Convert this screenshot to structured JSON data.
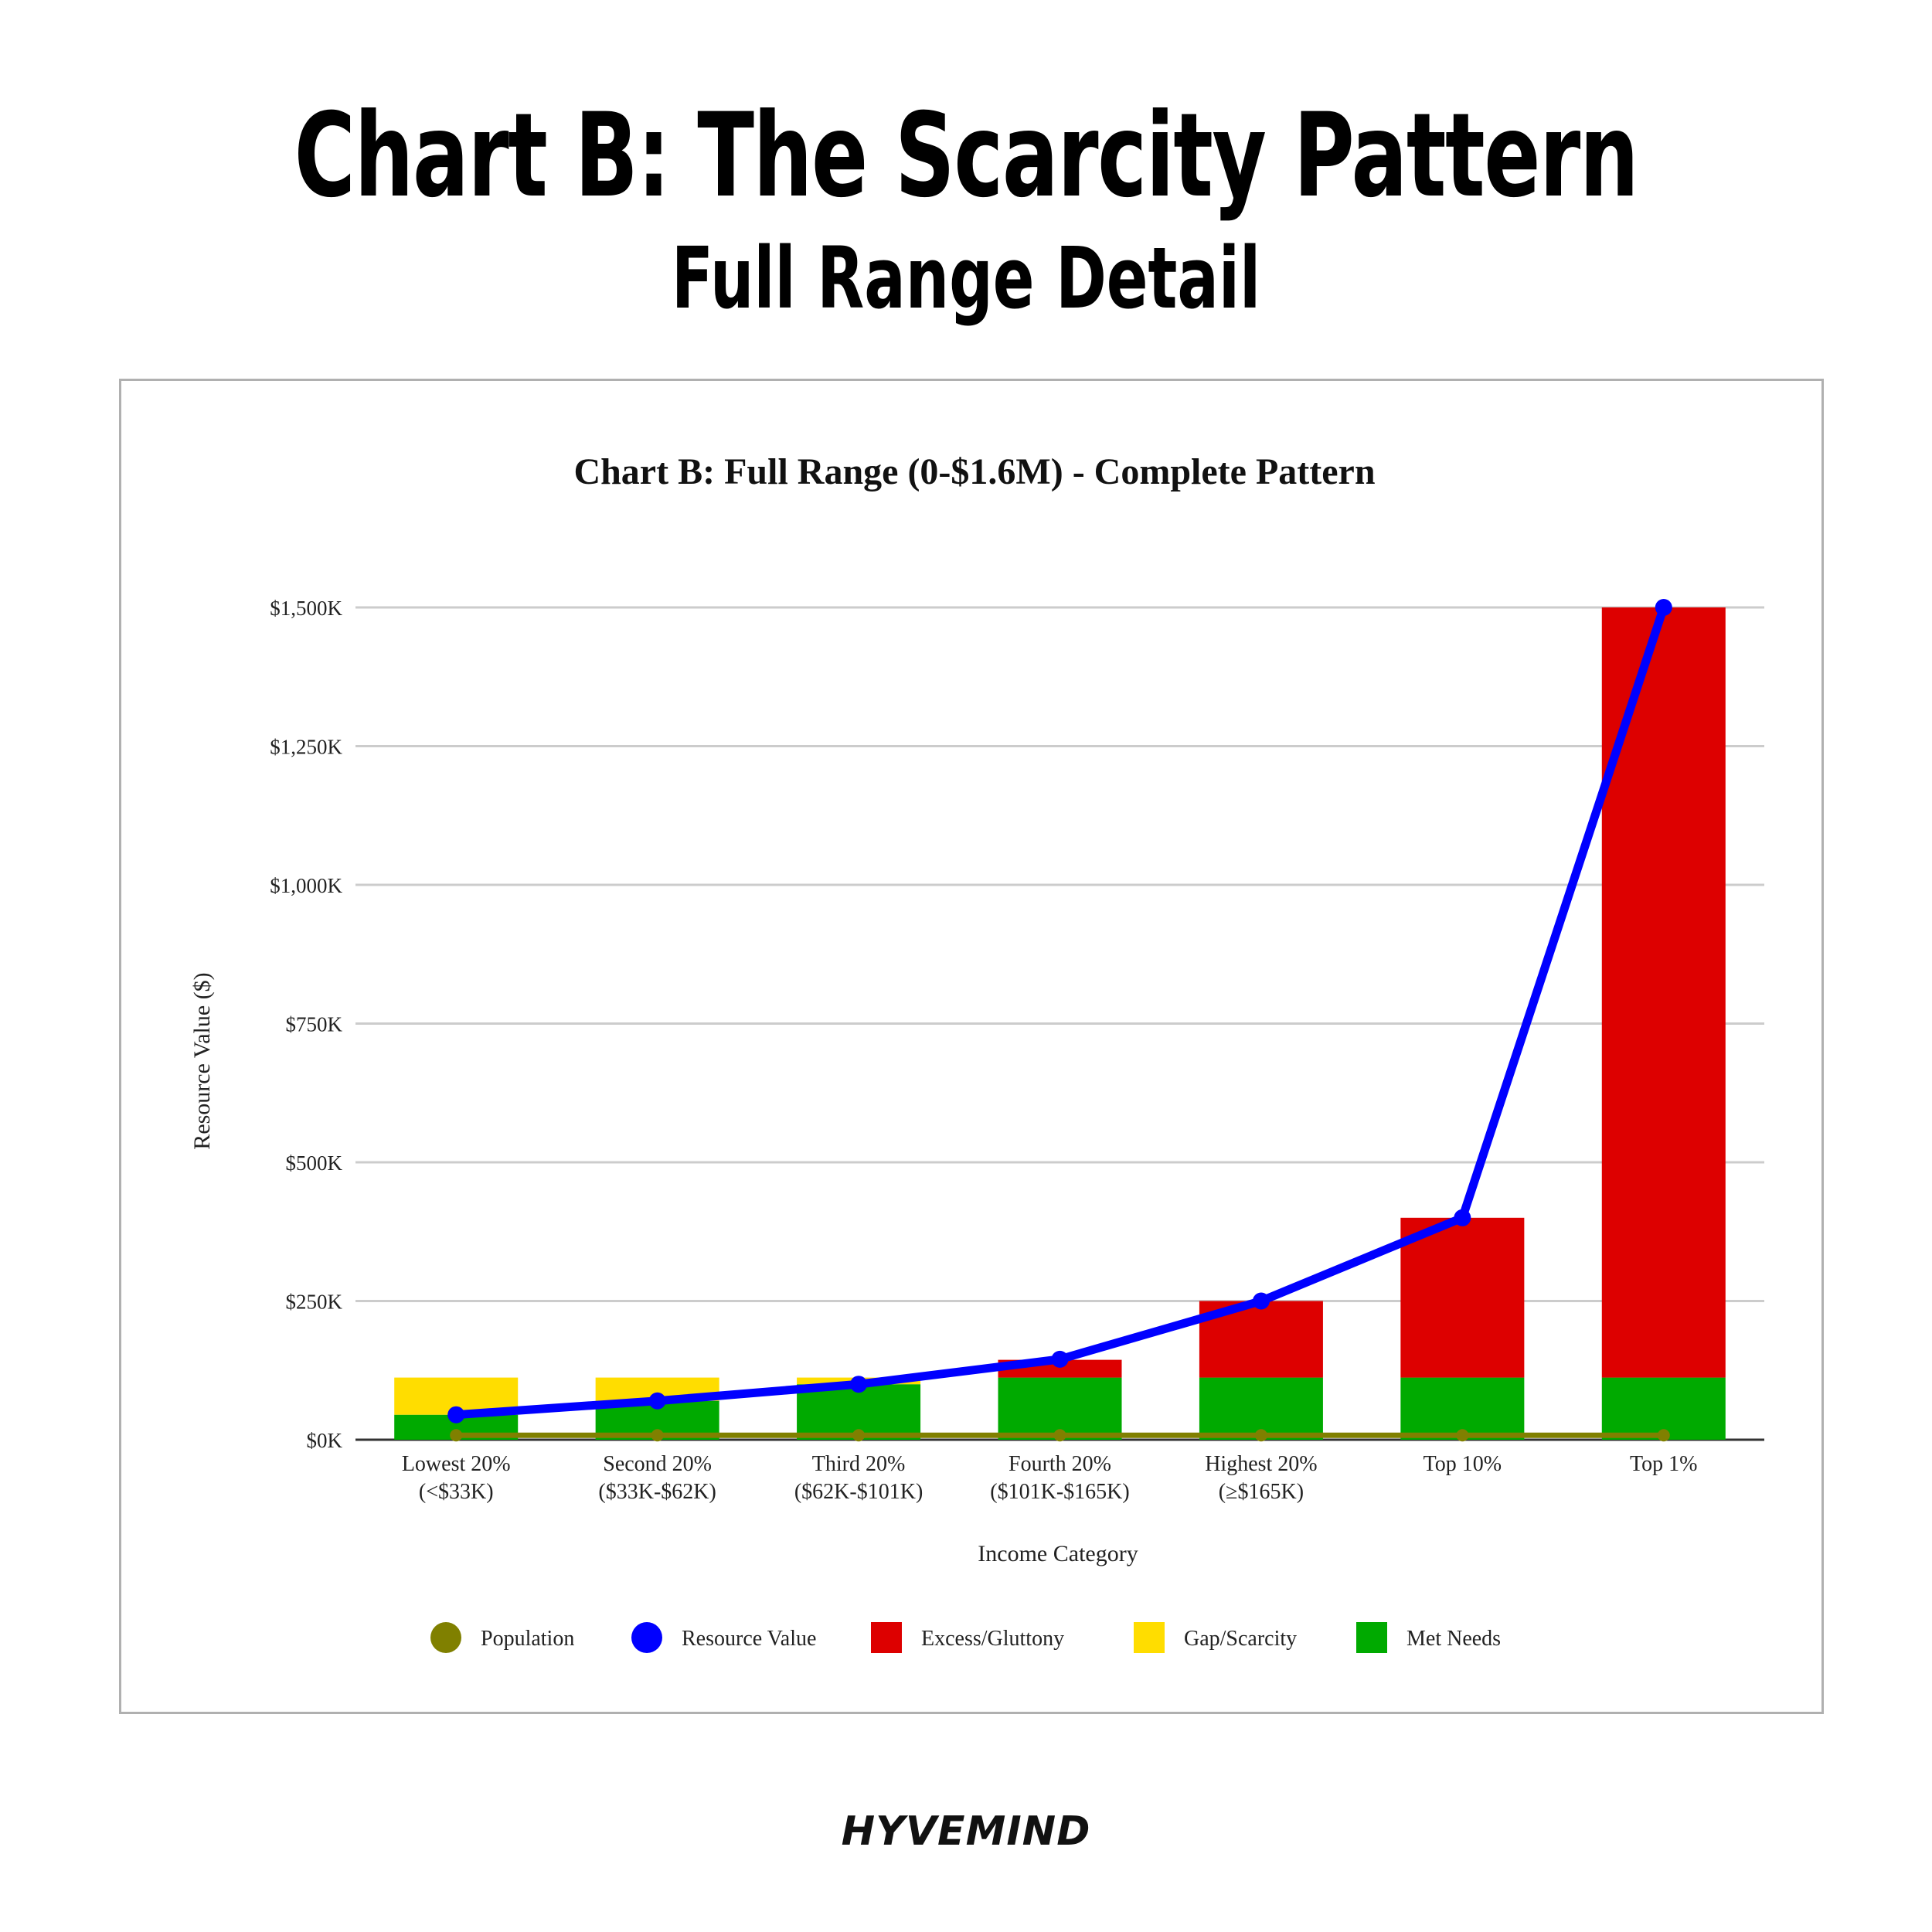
{
  "header": {
    "title": "Chart B: The Scarcity Pattern",
    "subtitle": "Full Range Detail"
  },
  "brand": "HYVEMIND",
  "colors": {
    "population": "#808000",
    "resource_value": "#0000ff",
    "excess": "#dd0000",
    "gap": "#ffdd00",
    "met_needs": "#00aa00"
  },
  "chart_data": {
    "type": "bar",
    "stacked": true,
    "title": "Chart B: Full Range (0-$1.6M) - Complete Pattern",
    "xlabel": "Income Category",
    "ylabel": "Resource Value ($)",
    "ylim": [
      0,
      1500
    ],
    "unit": "thousands of dollars",
    "yticks": [
      "$0K",
      "$250K",
      "$500K",
      "$750K",
      "$1,000K",
      "$1,250K",
      "$1,500K"
    ],
    "grid": true,
    "legend_position": "bottom",
    "categories": [
      [
        "Lowest 20%",
        "(<$33K)"
      ],
      [
        "Second 20%",
        "($33K-$62K)"
      ],
      [
        "Third 20%",
        "($62K-$101K)"
      ],
      [
        "Fourth 20%",
        "($101K-$165K)"
      ],
      [
        "Highest 20%",
        "(≥$165K)"
      ],
      [
        "Top 10%"
      ],
      [
        "Top 1%"
      ]
    ],
    "series": [
      {
        "name": "Population",
        "kind": "line",
        "values": [
          8,
          8,
          8,
          8,
          8,
          8,
          8
        ]
      },
      {
        "name": "Resource Value",
        "kind": "line",
        "values": [
          45,
          70,
          100,
          145,
          250,
          400,
          1500
        ]
      },
      {
        "name": "Excess/Gluttony",
        "kind": "bar",
        "values": [
          0,
          0,
          0,
          32,
          138,
          288,
          1388
        ]
      },
      {
        "name": "Gap/Scarcity",
        "kind": "bar",
        "values": [
          67,
          42,
          12,
          0,
          0,
          0,
          0
        ]
      },
      {
        "name": "Met Needs",
        "kind": "bar",
        "values": [
          45,
          70,
          100,
          112,
          112,
          112,
          112
        ]
      }
    ]
  }
}
